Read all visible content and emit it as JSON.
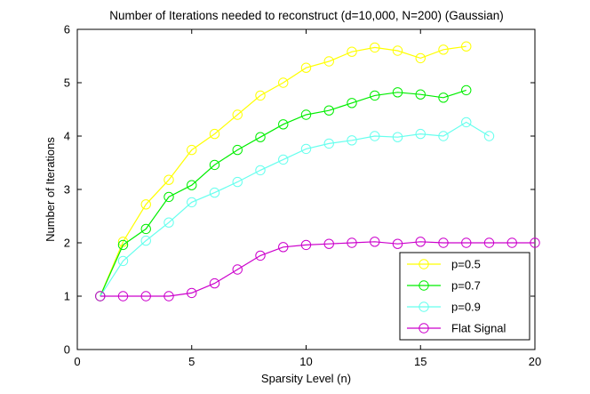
{
  "chart_data": {
    "type": "line",
    "title": "Number of Iterations needed to reconstruct (d=10,000, N=200) (Gaussian)",
    "xlabel": "Sparsity Level (n)",
    "ylabel": "Number of Iterations",
    "xlim": [
      0,
      20
    ],
    "ylim": [
      0,
      6
    ],
    "xticks": [
      0,
      5,
      10,
      15,
      20
    ],
    "yticks": [
      0,
      1,
      2,
      3,
      4,
      5,
      6
    ],
    "grid": false,
    "legend_position": "bottom-right",
    "series": [
      {
        "name": "p=0.5",
        "color": "#ffff00",
        "x": [
          1,
          2,
          3,
          4,
          5,
          6,
          7,
          8,
          9,
          10,
          11,
          12,
          13,
          14,
          15,
          16,
          17
        ],
        "y": [
          1.0,
          2.02,
          2.72,
          3.18,
          3.74,
          4.04,
          4.4,
          4.76,
          5.0,
          5.28,
          5.4,
          5.58,
          5.66,
          5.6,
          5.46,
          5.62,
          5.68
        ]
      },
      {
        "name": "p=0.7",
        "color": "#00ee00",
        "x": [
          1,
          2,
          3,
          4,
          5,
          6,
          7,
          8,
          9,
          10,
          11,
          12,
          13,
          14,
          15,
          16,
          17
        ],
        "y": [
          1.0,
          1.96,
          2.26,
          2.86,
          3.08,
          3.46,
          3.74,
          3.98,
          4.22,
          4.4,
          4.48,
          4.62,
          4.76,
          4.82,
          4.78,
          4.72,
          4.86
        ]
      },
      {
        "name": "p=0.9",
        "color": "#66ffee",
        "x": [
          1,
          2,
          3,
          4,
          5,
          6,
          7,
          8,
          9,
          10,
          11,
          12,
          13,
          14,
          15,
          16,
          17,
          18
        ],
        "y": [
          1.0,
          1.66,
          2.04,
          2.38,
          2.76,
          2.94,
          3.14,
          3.36,
          3.56,
          3.76,
          3.86,
          3.92,
          4.0,
          3.98,
          4.04,
          4.0,
          4.26,
          4.0
        ]
      },
      {
        "name": "Flat Signal",
        "color": "#cc00cc",
        "x": [
          1,
          2,
          3,
          4,
          5,
          6,
          7,
          8,
          9,
          10,
          11,
          12,
          13,
          14,
          15,
          16,
          17,
          18,
          19,
          20
        ],
        "y": [
          1.0,
          1.0,
          1.0,
          1.0,
          1.06,
          1.24,
          1.5,
          1.76,
          1.92,
          1.96,
          1.98,
          2.0,
          2.02,
          1.98,
          2.02,
          2.0,
          2.0,
          2.0,
          2.0,
          2.0
        ]
      }
    ]
  }
}
